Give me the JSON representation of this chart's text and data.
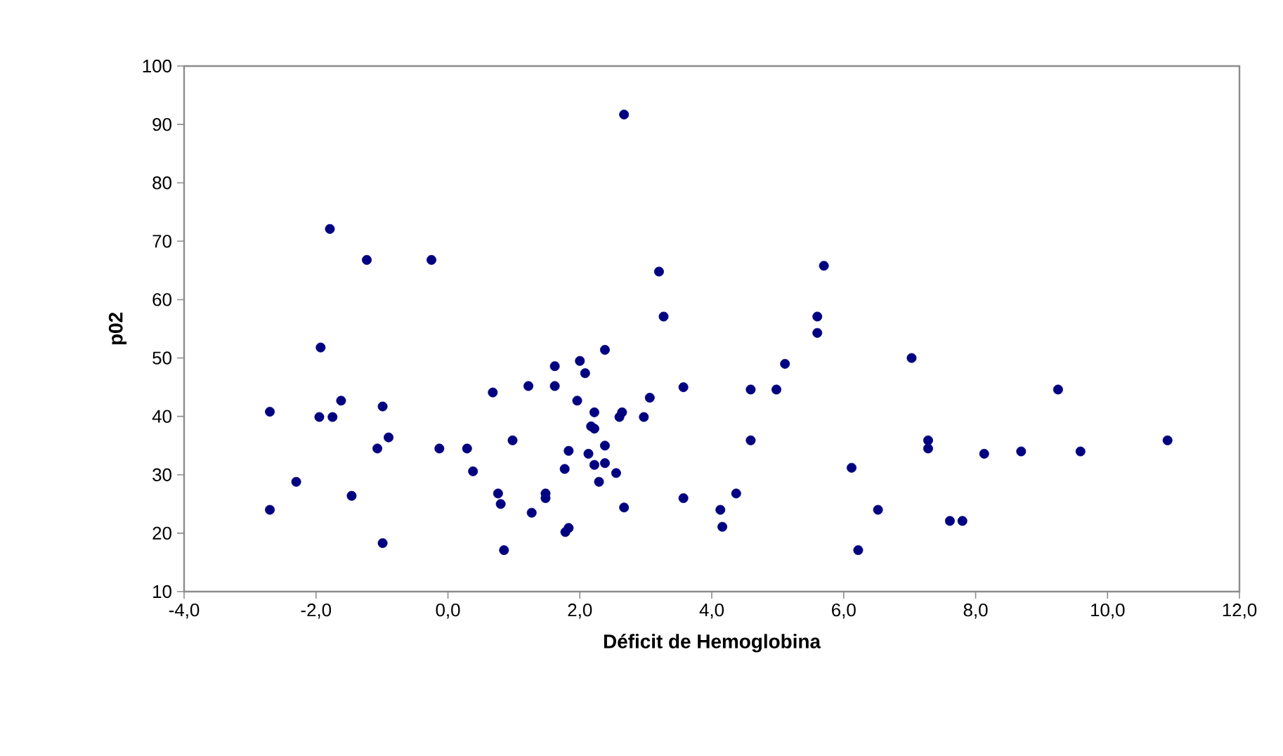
{
  "chart_data": {
    "type": "scatter",
    "xlabel": "Déficit de Hemoglobina",
    "ylabel": "p02",
    "xlim": [
      -4,
      12
    ],
    "ylim": [
      10,
      100
    ],
    "xticks": [
      {
        "value": -4,
        "label": "-4,0"
      },
      {
        "value": -2,
        "label": "-2,0"
      },
      {
        "value": 0,
        "label": "0,0"
      },
      {
        "value": 2,
        "label": "2,0"
      },
      {
        "value": 4,
        "label": "4,0"
      },
      {
        "value": 6,
        "label": "6,0"
      },
      {
        "value": 8,
        "label": "8,0"
      },
      {
        "value": 10,
        "label": "10,0"
      },
      {
        "value": 12,
        "label": "12,0"
      }
    ],
    "yticks": [
      10,
      20,
      30,
      40,
      50,
      60,
      70,
      80,
      90,
      100
    ],
    "grid": false,
    "marker": "circle",
    "series": [
      {
        "color": "#000080",
        "x": [
          -2.7,
          -2.7,
          -2.3,
          -1.95,
          -1.93,
          -1.79,
          -1.75,
          -1.62,
          -1.46,
          -1.23,
          -1.07,
          -0.99,
          -0.99,
          -0.9,
          -0.25,
          -0.13,
          0.29,
          0.38,
          0.68,
          0.76,
          0.8,
          0.85,
          0.98,
          1.22,
          1.27,
          1.48,
          1.48,
          1.62,
          1.62,
          1.77,
          1.78,
          1.83,
          1.83,
          1.96,
          2.0,
          2.08,
          2.13,
          2.17,
          2.22,
          2.22,
          2.22,
          2.29,
          2.38,
          2.38,
          2.38,
          2.55,
          2.6,
          2.64,
          2.67,
          2.67,
          2.97,
          3.06,
          3.2,
          3.27,
          3.57,
          3.57,
          4.13,
          4.16,
          4.37,
          4.59,
          4.59,
          4.98,
          5.11,
          5.6,
          5.6,
          5.7,
          6.12,
          6.22,
          6.52,
          7.03,
          7.28,
          7.28,
          7.61,
          7.8,
          8.13,
          8.69,
          9.25,
          9.59,
          10.91
        ],
        "values": [
          40.8,
          24.0,
          28.8,
          39.9,
          51.8,
          72.1,
          39.9,
          42.7,
          26.4,
          66.8,
          34.5,
          41.7,
          18.3,
          36.4,
          66.8,
          34.5,
          34.5,
          30.6,
          44.1,
          26.8,
          25.0,
          17.1,
          35.9,
          45.2,
          23.5,
          26.8,
          26.0,
          48.6,
          45.2,
          31.0,
          20.2,
          20.9,
          34.1,
          42.7,
          49.5,
          47.4,
          33.6,
          38.3,
          40.7,
          37.9,
          31.7,
          28.8,
          35.0,
          51.4,
          32.0,
          30.3,
          39.9,
          40.7,
          91.7,
          24.4,
          39.9,
          43.2,
          64.8,
          57.1,
          45.0,
          26.0,
          24.0,
          21.1,
          26.8,
          44.6,
          35.9,
          44.6,
          49.0,
          57.1,
          54.3,
          65.8,
          31.2,
          17.1,
          24.0,
          50.0,
          35.9,
          34.5,
          22.1,
          22.1,
          33.6,
          34.0,
          44.6,
          34.0,
          35.9
        ]
      }
    ]
  }
}
